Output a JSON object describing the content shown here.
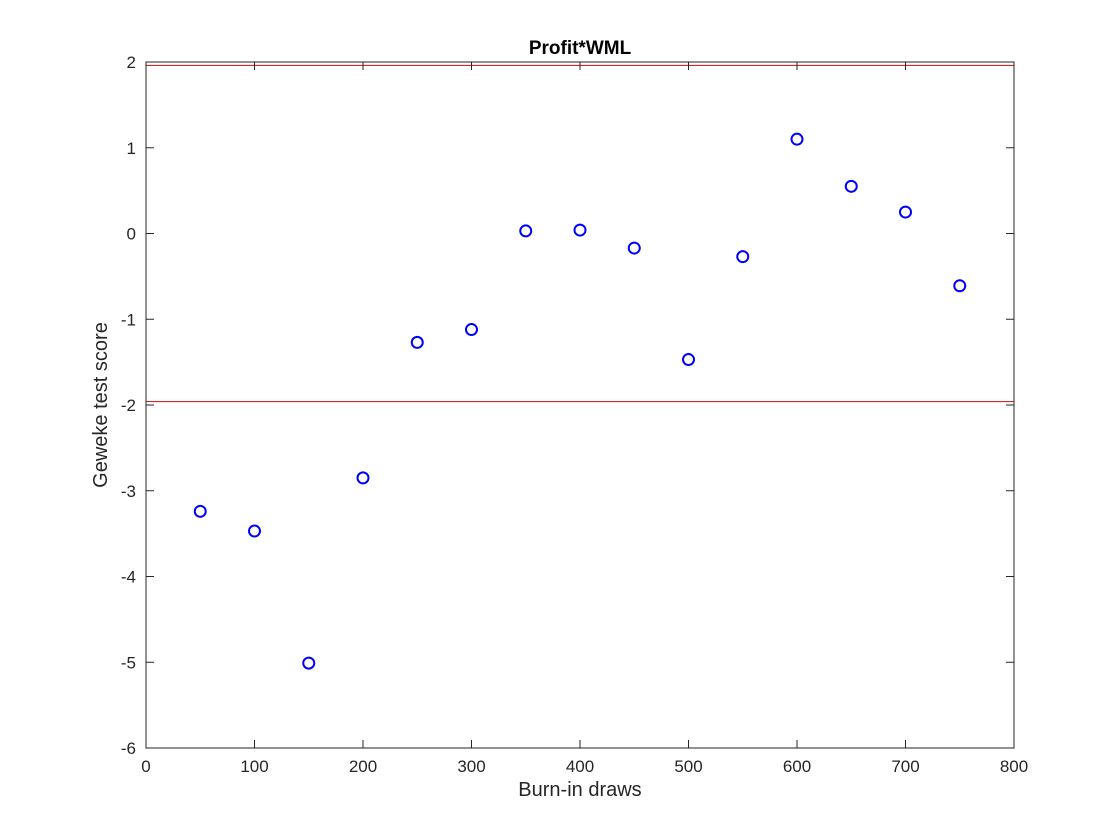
{
  "chart_data": {
    "type": "scatter",
    "title": "Profit*WML",
    "xlabel": "Burn-in draws",
    "ylabel": "Geweke test score",
    "xlim": [
      0,
      800
    ],
    "ylim": [
      -6,
      2
    ],
    "xticks": [
      0,
      100,
      200,
      300,
      400,
      500,
      600,
      700,
      800
    ],
    "yticks": [
      2,
      1,
      0,
      -1,
      -2,
      -3,
      -4,
      -5,
      -6
    ],
    "grid": false,
    "marker": "circle",
    "marker_color": "#0000ff",
    "reference_lines": {
      "y": [
        1.96,
        -1.96
      ],
      "color": "#d62728"
    },
    "points": [
      {
        "x": 50,
        "y": -3.24
      },
      {
        "x": 100,
        "y": -3.47
      },
      {
        "x": 150,
        "y": -5.01
      },
      {
        "x": 200,
        "y": -2.85
      },
      {
        "x": 250,
        "y": -1.27
      },
      {
        "x": 300,
        "y": -1.12
      },
      {
        "x": 350,
        "y": 0.03
      },
      {
        "x": 400,
        "y": 0.04
      },
      {
        "x": 450,
        "y": -0.17
      },
      {
        "x": 500,
        "y": -1.47
      },
      {
        "x": 550,
        "y": -0.27
      },
      {
        "x": 600,
        "y": 1.1
      },
      {
        "x": 650,
        "y": 0.55
      },
      {
        "x": 700,
        "y": 0.25
      },
      {
        "x": 750,
        "y": -0.61
      }
    ]
  }
}
